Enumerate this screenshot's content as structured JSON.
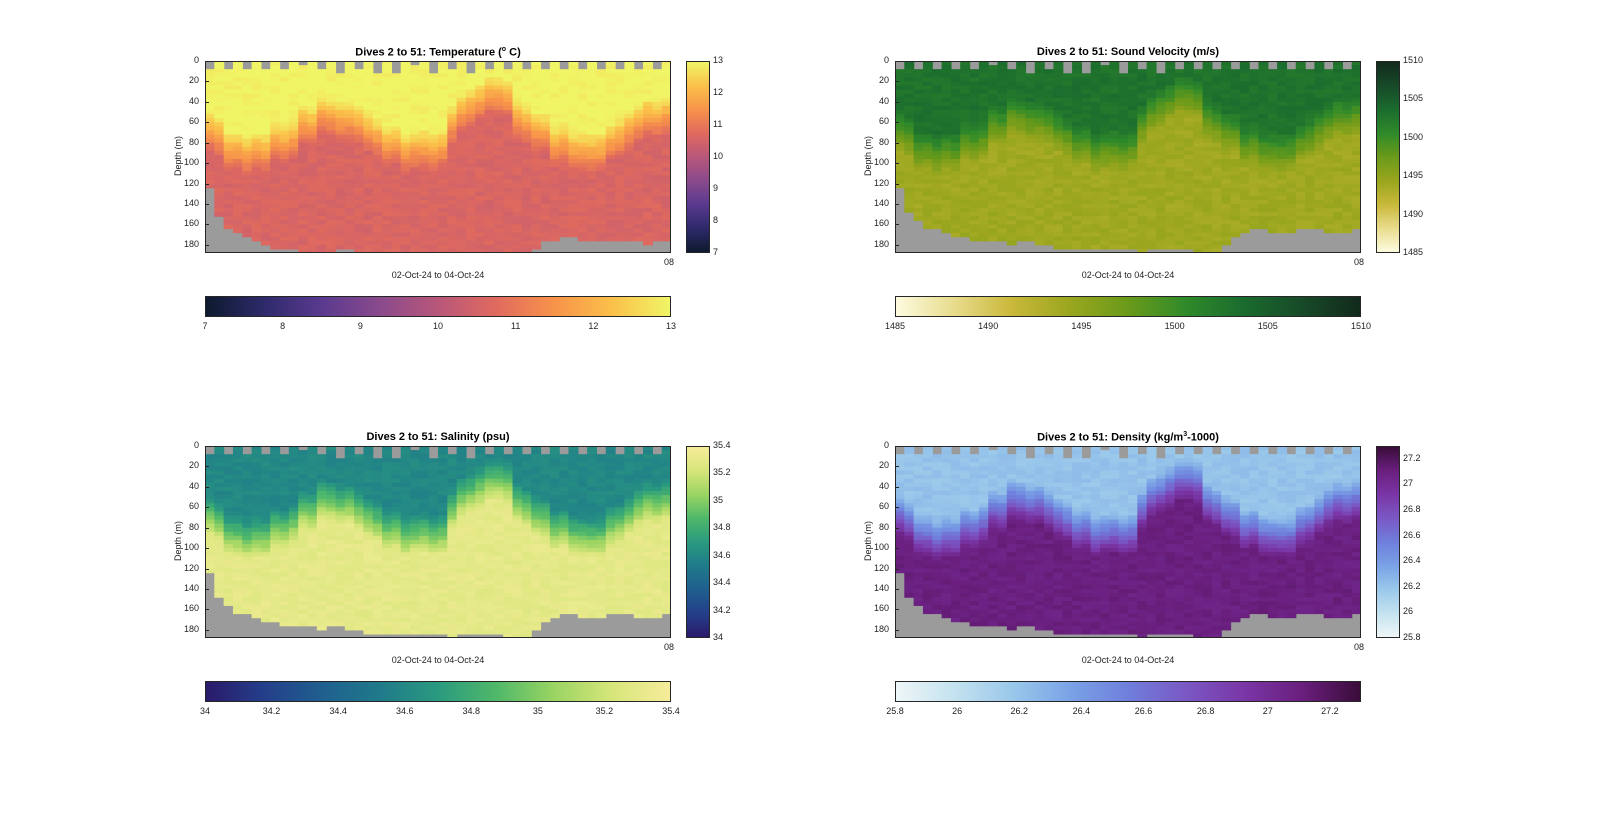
{
  "chart_data": [
    {
      "id": "temperature",
      "type": "heatmap",
      "title_pre": "Dives 2 to 51: Temperature (",
      "title_sup": "o",
      "title_post": " C)",
      "ylabel": "Depth (m)",
      "xlabel": "02-Oct-24 to 04-Oct-24",
      "x_end_tick": "08",
      "y_ticks": [
        "0",
        "20",
        "40",
        "60",
        "80",
        "100",
        "120",
        "140",
        "160",
        "180"
      ],
      "ylim": [
        0,
        188
      ],
      "clim": [
        7,
        13
      ],
      "cbar_v_ticks": [
        "13",
        "12",
        "11",
        "10",
        "9",
        "8",
        "7"
      ],
      "cbar_h_ticks": [
        "7",
        "8",
        "9",
        "10",
        "11",
        "12",
        "13"
      ],
      "colormap": [
        "#0d1a2e",
        "#2e2a6b",
        "#5a3a8f",
        "#8a4a8c",
        "#b8577a",
        "#e06a5e",
        "#f7934a",
        "#fbc04a",
        "#f0f566"
      ],
      "profile": {
        "surface": 13,
        "mixed_depth": 60,
        "deep": 10.6
      },
      "bottom_depth": [
        120,
        150,
        160,
        165,
        170,
        175,
        178,
        180,
        182,
        183,
        184,
        185,
        185,
        184,
        182,
        183,
        184,
        185,
        186,
        187,
        186,
        185,
        184,
        185,
        186,
        187,
        188,
        187,
        186,
        185,
        186,
        187,
        188,
        189,
        188,
        182,
        175,
        172,
        170,
        171,
        172,
        173,
        174,
        173,
        172,
        173,
        175,
        176,
        174,
        172
      ]
    },
    {
      "id": "sound_velocity",
      "type": "heatmap",
      "title_pre": "Dives 2 to 51: Sound Velocity (m/s)",
      "title_sup": "",
      "title_post": "",
      "ylabel": "Depth (m)",
      "xlabel": "02-Oct-24 to 04-Oct-24",
      "x_end_tick": "08",
      "y_ticks": [
        "0",
        "20",
        "40",
        "60",
        "80",
        "100",
        "120",
        "140",
        "160",
        "180"
      ],
      "ylim": [
        0,
        188
      ],
      "clim": [
        1485,
        1510
      ],
      "cbar_v_ticks": [
        "1510",
        "1505",
        "1500",
        "1495",
        "1490",
        "1485"
      ],
      "cbar_h_ticks": [
        "1485",
        "1490",
        "1495",
        "1500",
        "1505",
        "1510"
      ],
      "colormap": [
        "#fdfbe0",
        "#e8dc8c",
        "#c9b83a",
        "#9aa61e",
        "#6a9a1a",
        "#2f8a2a",
        "#1a6b2e",
        "#174a28",
        "#122a1c"
      ],
      "profile": {
        "surface": 1503,
        "mixed_depth": 60,
        "deep": 1494
      },
      "bottom_depth": [
        120,
        145,
        155,
        160,
        162,
        165,
        168,
        170,
        172,
        173,
        174,
        175,
        176,
        175,
        174,
        176,
        178,
        180,
        182,
        183,
        182,
        181,
        180,
        181,
        182,
        183,
        184,
        183,
        182,
        181,
        182,
        183,
        184,
        185,
        184,
        178,
        170,
        166,
        162,
        163,
        164,
        165,
        164,
        163,
        162,
        163,
        165,
        166,
        164,
        162
      ]
    },
    {
      "id": "salinity",
      "type": "heatmap",
      "title_pre": "Dives 2 to 51: Salinity (psu)",
      "title_sup": "",
      "title_post": "",
      "ylabel": "Depth (m)",
      "xlabel": "02-Oct-24 to 04-Oct-24",
      "x_end_tick": "08",
      "y_ticks": [
        "0",
        "20",
        "40",
        "60",
        "80",
        "100",
        "120",
        "140",
        "160",
        "180"
      ],
      "ylim": [
        0,
        188
      ],
      "clim": [
        34,
        35.4
      ],
      "cbar_v_ticks": [
        "35.4",
        "35.2",
        "35",
        "34.8",
        "34.6",
        "34.4",
        "34.2",
        "34"
      ],
      "cbar_h_ticks": [
        "34",
        "34.2",
        "34.4",
        "34.6",
        "34.8",
        "35",
        "35.2",
        "35.4"
      ],
      "colormap": [
        "#2a1a6a",
        "#243f8a",
        "#1f5f8f",
        "#1f7a8a",
        "#2a9a7f",
        "#4fb86a",
        "#9ad462",
        "#d7e67a",
        "#f6ec9a"
      ],
      "profile": {
        "surface": 34.6,
        "mixed_depth": 60,
        "deep": 35.3
      },
      "bottom_depth": [
        120,
        145,
        155,
        160,
        162,
        165,
        168,
        170,
        172,
        173,
        174,
        175,
        176,
        175,
        174,
        176,
        178,
        180,
        182,
        183,
        182,
        181,
        180,
        181,
        182,
        183,
        184,
        183,
        182,
        181,
        182,
        183,
        184,
        185,
        184,
        178,
        170,
        166,
        162,
        163,
        164,
        165,
        164,
        163,
        162,
        163,
        165,
        166,
        164,
        162
      ]
    },
    {
      "id": "density",
      "type": "heatmap",
      "title_pre": "Dives 2 to 51: Density (kg/m",
      "title_sup": "3",
      "title_post": "-1000)",
      "ylabel": "Depth (m)",
      "xlabel": "02-Oct-24 to 04-Oct-24",
      "x_end_tick": "08",
      "y_ticks": [
        "0",
        "20",
        "40",
        "60",
        "80",
        "100",
        "120",
        "140",
        "160",
        "180"
      ],
      "ylim": [
        0,
        188
      ],
      "clim": [
        25.8,
        27.3
      ],
      "cbar_v_ticks": [
        "27.2",
        "27",
        "26.8",
        "26.6",
        "26.4",
        "26.2",
        "26",
        "25.8"
      ],
      "cbar_h_ticks": [
        "25.8",
        "26",
        "26.2",
        "26.4",
        "26.6",
        "26.8",
        "27",
        "27.2"
      ],
      "colormap": [
        "#eef6f8",
        "#c4e2ef",
        "#9ac8ea",
        "#7aa2e6",
        "#6f7fdc",
        "#7a58c4",
        "#7a36a6",
        "#6a1f7e",
        "#3a0c3a"
      ],
      "profile": {
        "surface": 26.2,
        "mixed_depth": 60,
        "deep": 27.1
      },
      "bottom_depth": [
        120,
        145,
        155,
        160,
        162,
        165,
        168,
        170,
        172,
        173,
        174,
        175,
        176,
        175,
        174,
        176,
        178,
        180,
        182,
        183,
        182,
        181,
        180,
        181,
        182,
        183,
        184,
        183,
        182,
        181,
        182,
        183,
        184,
        185,
        184,
        178,
        170,
        166,
        162,
        163,
        164,
        165,
        164,
        163,
        162,
        163,
        165,
        166,
        164,
        162
      ]
    }
  ]
}
